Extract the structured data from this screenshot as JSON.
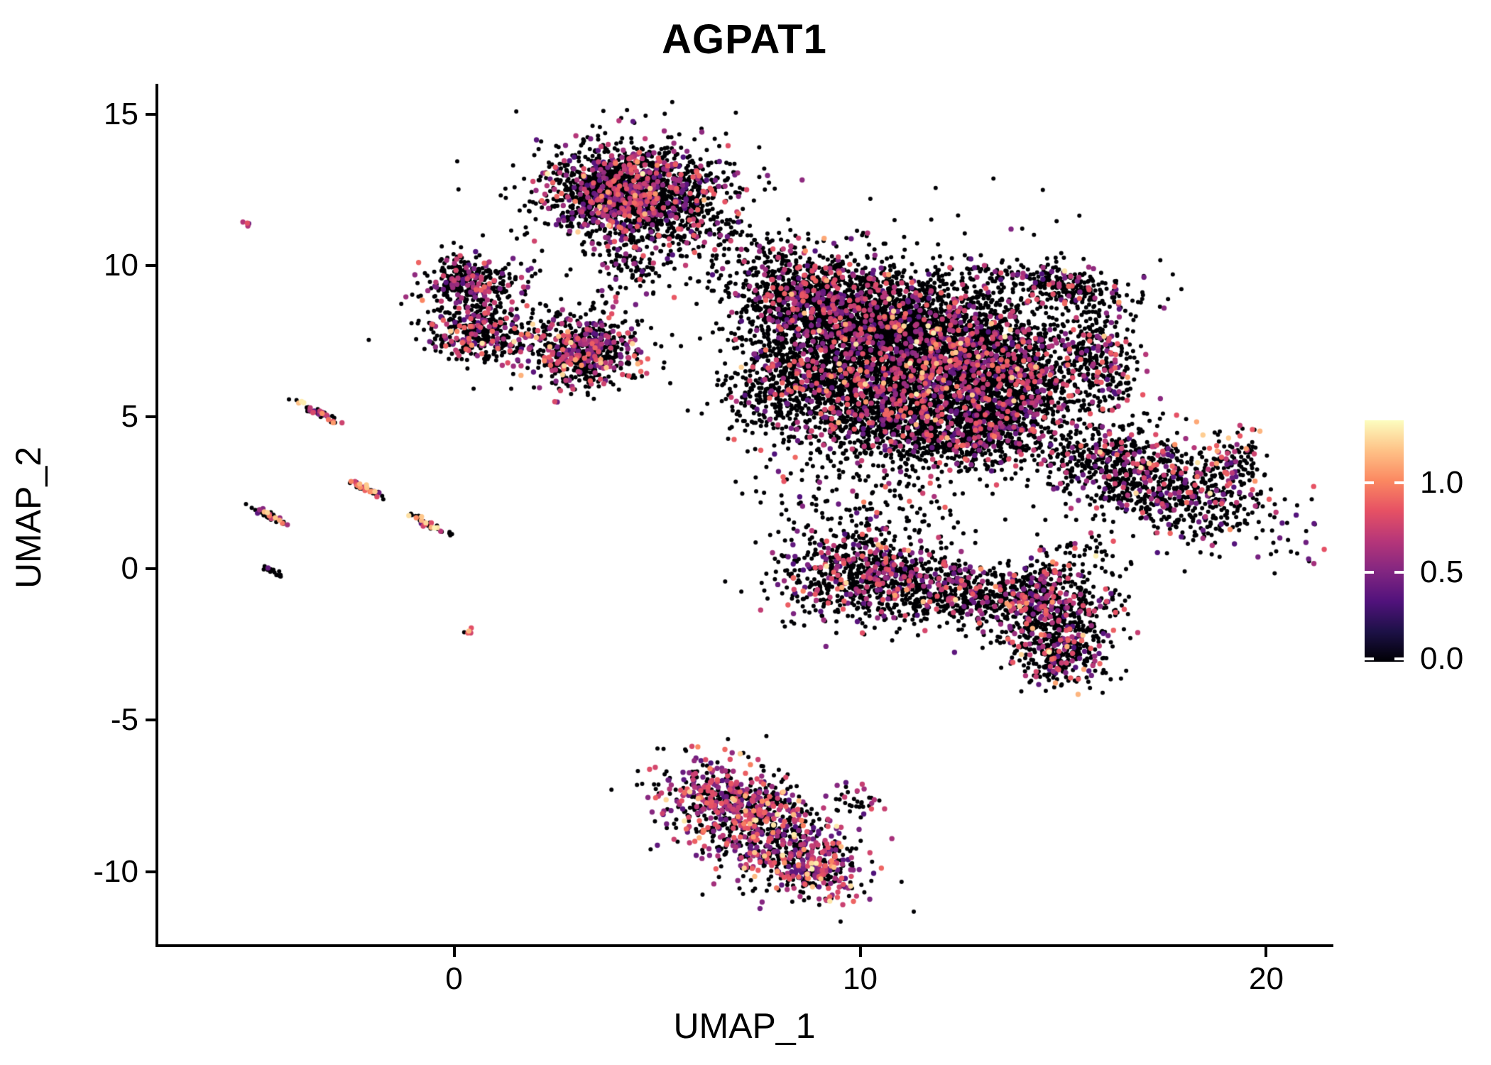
{
  "chart_data": {
    "type": "scatter",
    "title": "AGPAT1",
    "xlabel": "UMAP_1",
    "ylabel": "UMAP_2",
    "xlim": [
      -7.3,
      21.6
    ],
    "ylim": [
      -12.4,
      16.0
    ],
    "grid": false,
    "x_ticks": [
      0,
      10,
      20
    ],
    "x_tick_labels": [
      "0",
      "10",
      "20"
    ],
    "y_ticks": [
      15,
      10,
      5,
      0,
      -5,
      -10
    ],
    "y_tick_labels": [
      "15",
      "10",
      "5",
      "0",
      "-5",
      "-10"
    ],
    "legend": {
      "position": "right",
      "domain": [
        0,
        1.35
      ],
      "tick_values": [
        1.0,
        0.5,
        0.0
      ],
      "tick_labels": [
        "1.0",
        "0.5",
        "0.0"
      ]
    },
    "colormap": {
      "name": "magma",
      "stops": [
        [
          0,
          "#000004"
        ],
        [
          0.125,
          "#1d1147"
        ],
        [
          0.25,
          "#51127c"
        ],
        [
          0.375,
          "#822681"
        ],
        [
          0.5,
          "#b63679"
        ],
        [
          0.625,
          "#e65164"
        ],
        [
          0.75,
          "#fb8861"
        ],
        [
          0.875,
          "#fec287"
        ],
        [
          1,
          "#fcfdbf"
        ]
      ]
    },
    "point": {
      "radius_base": 3.0,
      "radius_colored": 3.7
    },
    "value_ranges": {
      "zero": [
        0,
        0.04
      ],
      "mid": [
        0.32,
        0.92
      ],
      "high": [
        0.95,
        1.32
      ]
    },
    "seed": 424242,
    "clusters": [
      {
        "cx": 4.4,
        "cy": 12.4,
        "sx": 1.05,
        "sy": 0.72,
        "rot": 0,
        "n": 1600,
        "pm": 0.22,
        "ph": 0.012
      },
      {
        "cx": 4.5,
        "cy": 12.2,
        "sx": 1.6,
        "sy": 1.1,
        "rot": 0,
        "n": 350,
        "pm": 0.15,
        "ph": 0.01
      },
      {
        "cx": 4.3,
        "cy": 10.2,
        "sx": 0.5,
        "sy": 0.8,
        "rot": 0,
        "n": 130,
        "pm": 0.18,
        "ph": 0.01
      },
      {
        "cx": 6.7,
        "cy": 10.6,
        "sx": 1.0,
        "sy": 0.55,
        "rot": -20,
        "n": 140,
        "pm": 0.12,
        "ph": 0.005
      },
      {
        "cx": 0.35,
        "cy": 9.45,
        "sx": 0.55,
        "sy": 0.42,
        "rot": 0,
        "n": 300,
        "pm": 0.22,
        "ph": 0.01
      },
      {
        "cx": 0.6,
        "cy": 7.8,
        "sx": 0.6,
        "sy": 0.48,
        "rot": 0,
        "n": 340,
        "pm": 0.25,
        "ph": 0.015
      },
      {
        "cx": 0.8,
        "cy": 8.6,
        "sx": 0.9,
        "sy": 0.9,
        "rot": 0,
        "n": 90,
        "pm": 0.15,
        "ph": 0
      },
      {
        "cx": 3.15,
        "cy": 7.25,
        "sx": 0.72,
        "sy": 0.6,
        "rot": 0,
        "n": 650,
        "pm": 0.3,
        "ph": 0.02
      },
      {
        "cx": 8.7,
        "cy": 8.9,
        "sx": 0.9,
        "sy": 0.75,
        "rot": 0,
        "n": 900,
        "pm": 0.16,
        "ph": 0.01
      },
      {
        "cx": 10.6,
        "cy": 8.1,
        "sx": 1.15,
        "sy": 0.95,
        "rot": 0,
        "n": 1400,
        "pm": 0.16,
        "ph": 0.012
      },
      {
        "cx": 12.4,
        "cy": 7.1,
        "sx": 1.15,
        "sy": 0.95,
        "rot": 0,
        "n": 1400,
        "pm": 0.17,
        "ph": 0.012
      },
      {
        "cx": 9.6,
        "cy": 6.1,
        "sx": 1.15,
        "sy": 0.95,
        "rot": 0,
        "n": 1100,
        "pm": 0.16,
        "ph": 0.01
      },
      {
        "cx": 11.6,
        "cy": 5.0,
        "sx": 1.25,
        "sy": 0.85,
        "rot": 0,
        "n": 1100,
        "pm": 0.16,
        "ph": 0.01
      },
      {
        "cx": 13.9,
        "cy": 6.2,
        "sx": 0.85,
        "sy": 0.95,
        "rot": 0,
        "n": 750,
        "pm": 0.18,
        "ph": 0.012
      },
      {
        "cx": 14.9,
        "cy": 9.35,
        "sx": 0.95,
        "sy": 0.33,
        "rot": -12,
        "n": 280,
        "pm": 0.18,
        "ph": 0.01
      },
      {
        "cx": 15.9,
        "cy": 6.9,
        "sx": 0.42,
        "sy": 1.0,
        "rot": 8,
        "n": 300,
        "pm": 0.2,
        "ph": 0.015
      },
      {
        "cx": 7.8,
        "cy": 6.6,
        "sx": 0.5,
        "sy": 1.1,
        "rot": 0,
        "n": 220,
        "pm": 0.12,
        "ph": 0.005
      },
      {
        "cx": 12.9,
        "cy": 4.4,
        "sx": 0.8,
        "sy": 0.6,
        "rot": 0,
        "n": 350,
        "pm": 0.16,
        "ph": 0.01
      },
      {
        "cx": 11.3,
        "cy": 6.8,
        "sx": 2.3,
        "sy": 1.9,
        "rot": 0,
        "n": 500,
        "pm": 0.1,
        "ph": 0.005
      },
      {
        "cx": 10.0,
        "cy": 2.1,
        "sx": 1.3,
        "sy": 0.9,
        "rot": 0,
        "n": 170,
        "pm": 0.12,
        "ph": 0.01
      },
      {
        "cx": 17.2,
        "cy": 2.9,
        "sx": 1.55,
        "sy": 0.75,
        "rot": -27,
        "n": 1050,
        "pm": 0.2,
        "ph": 0.012
      },
      {
        "cx": 19.3,
        "cy": 3.6,
        "sx": 0.35,
        "sy": 0.5,
        "rot": 0,
        "n": 90,
        "pm": 0.3,
        "ph": 0.03
      },
      {
        "cx": 10.1,
        "cy": -0.25,
        "sx": 1.0,
        "sy": 0.75,
        "rot": 0,
        "n": 700,
        "pm": 0.2,
        "ph": 0.012
      },
      {
        "cx": 11.8,
        "cy": -0.7,
        "sx": 0.75,
        "sy": 0.55,
        "rot": 0,
        "n": 350,
        "pm": 0.2,
        "ph": 0.01
      },
      {
        "cx": 12.9,
        "cy": -1.2,
        "sx": 0.5,
        "sy": 0.4,
        "rot": 0,
        "n": 90,
        "pm": 0.15,
        "ph": 0.005
      },
      {
        "cx": 14.2,
        "cy": -0.9,
        "sx": 0.6,
        "sy": 0.6,
        "rot": 0,
        "n": 300,
        "pm": 0.22,
        "ph": 0.015
      },
      {
        "cx": 14.8,
        "cy": -1.7,
        "sx": 0.8,
        "sy": 0.8,
        "rot": 0,
        "n": 450,
        "pm": 0.25,
        "ph": 0.02
      },
      {
        "cx": 15.0,
        "cy": -2.9,
        "sx": 0.55,
        "sy": 0.5,
        "rot": 0,
        "n": 220,
        "pm": 0.25,
        "ph": 0.02
      },
      {
        "cx": 15.5,
        "cy": 0.3,
        "sx": 0.6,
        "sy": 0.5,
        "rot": 0,
        "n": 60,
        "pm": 0.15,
        "ph": 0.005
      },
      {
        "cx": 7.4,
        "cy": -8.4,
        "sx": 1.35,
        "sy": 0.8,
        "rot": -38,
        "n": 850,
        "pm": 0.45,
        "ph": 0.05
      },
      {
        "cx": 8.9,
        "cy": -9.9,
        "sx": 0.55,
        "sy": 0.45,
        "rot": -38,
        "n": 220,
        "pm": 0.45,
        "ph": 0.06
      },
      {
        "cx": 6.6,
        "cy": -7.5,
        "sx": 0.8,
        "sy": 0.3,
        "rot": -15,
        "n": 150,
        "pm": 0.4,
        "ph": 0.05
      },
      {
        "cx": 9.9,
        "cy": -7.6,
        "sx": 0.4,
        "sy": 0.3,
        "rot": 0,
        "n": 35,
        "pm": 0.3,
        "ph": 0.03
      },
      {
        "cx": -3.35,
        "cy": 5.15,
        "sx": 0.28,
        "sy": 0.055,
        "rot": -33,
        "n": 45,
        "pm": 0.3,
        "ph": 0.12
      },
      {
        "cx": -2.1,
        "cy": 2.6,
        "sx": 0.22,
        "sy": 0.05,
        "rot": -33,
        "n": 38,
        "pm": 0.25,
        "ph": 0.2
      },
      {
        "cx": -4.55,
        "cy": 1.75,
        "sx": 0.24,
        "sy": 0.05,
        "rot": -33,
        "n": 38,
        "pm": 0.2,
        "ph": 0.12
      },
      {
        "cx": -0.6,
        "cy": 1.45,
        "sx": 0.26,
        "sy": 0.06,
        "rot": -33,
        "n": 48,
        "pm": 0.25,
        "ph": 0.15
      },
      {
        "cx": -4.45,
        "cy": -0.1,
        "sx": 0.16,
        "sy": 0.045,
        "rot": -33,
        "n": 18,
        "pm": 0.05,
        "ph": 0
      },
      {
        "cx": 0.35,
        "cy": -2.1,
        "sx": 0.06,
        "sy": 0.05,
        "rot": 0,
        "n": 5,
        "pm": 0.4,
        "ph": 0.3
      },
      {
        "cx": -5.1,
        "cy": 11.4,
        "sx": 0.05,
        "sy": 0.05,
        "rot": 0,
        "n": 4,
        "pm": 0.7,
        "ph": 0.2
      }
    ]
  }
}
